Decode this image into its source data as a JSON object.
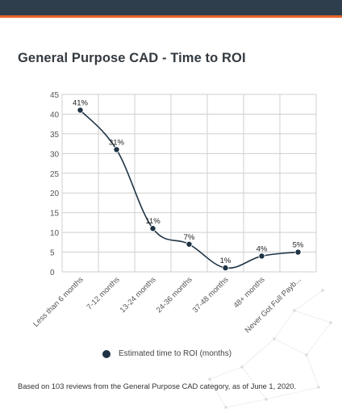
{
  "title": "General Purpose CAD - Time to ROI",
  "footnote": "Based on 103 reviews from the General Purpose CAD category, as of June 1, 2020.",
  "legend_label": "Estimated time to ROI (months)",
  "colors": {
    "header": "#2e3e4c",
    "accent": "#e8632a",
    "series": "#1f3344",
    "grid": "#cfcfcf"
  },
  "chart_data": {
    "type": "line",
    "categories": [
      "Less than 6 months",
      "7-12 months",
      "13-24 months",
      "24-36 months",
      "37-48 months",
      "48+ months",
      "Never Got Full Payb..."
    ],
    "series": [
      {
        "name": "Estimated time to ROI (months)",
        "values": [
          41,
          31,
          11,
          7,
          1,
          4,
          5
        ],
        "labels": [
          "41%",
          "31%",
          "11%",
          "7%",
          "1%",
          "4%",
          "5%"
        ]
      }
    ],
    "yticks": [
      "0",
      "5",
      "10",
      "15",
      "20",
      "25",
      "30",
      "35",
      "40",
      "45"
    ],
    "ylim": [
      0,
      45
    ],
    "grid": true,
    "legend_position": "bottom"
  }
}
